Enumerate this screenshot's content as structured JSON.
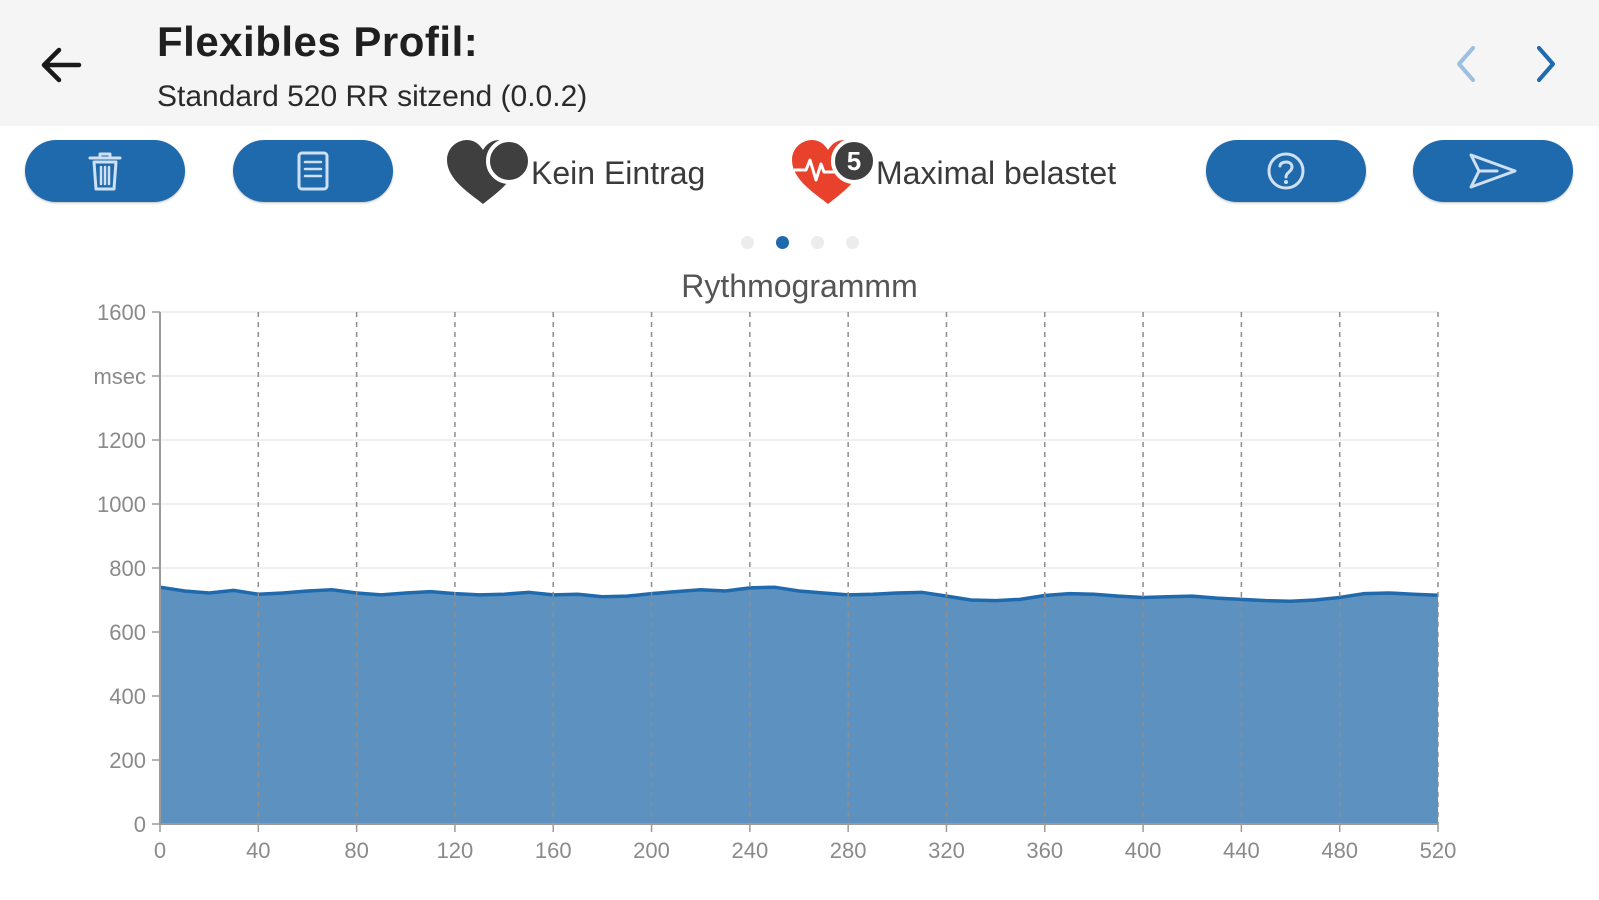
{
  "header": {
    "title": "Flexibles Profil:",
    "subtitle": "Standard 520 RR sitzend (0.0.2)",
    "back_icon": "arrow-left-icon",
    "prev_icon": "chevron-left-icon",
    "next_icon": "chevron-right-icon"
  },
  "toolbar": {
    "delete_icon": "trash-icon",
    "report_icon": "document-icon",
    "help_icon": "question-circle-icon",
    "send_icon": "send-icon",
    "status_none": {
      "label": "Kein Eintrag",
      "icon": "heart-gray-icon"
    },
    "status_load": {
      "label": "Maximal belastet",
      "icon": "heart-red-pulse-icon",
      "badge": "5"
    }
  },
  "pager": {
    "count": 4,
    "active_index": 1
  },
  "colors": {
    "primary": "#1f69ad",
    "area_fill": "#5d92c0",
    "line": "#1f69ad",
    "heart_red": "#e8412c",
    "heart_gray": "#3f3f3f",
    "header_bg": "#f5f5f5"
  },
  "chart_data": {
    "type": "area",
    "title": "Rythmogrammm",
    "ylabel": "msec",
    "xlim": [
      0,
      520
    ],
    "ylim": [
      0,
      1600
    ],
    "x_ticks": [
      0,
      40,
      80,
      120,
      160,
      200,
      240,
      280,
      320,
      360,
      400,
      440,
      480,
      520
    ],
    "y_ticks": [
      "0",
      "200",
      "400",
      "600",
      "800",
      "1000",
      "1200",
      "msec",
      "1600"
    ],
    "grid": {
      "x": "dashed",
      "y": "solid-light"
    },
    "series": [
      {
        "x": [
          0,
          10,
          20,
          30,
          40,
          50,
          60,
          70,
          80,
          90,
          100,
          110,
          120,
          130,
          140,
          150,
          160,
          170,
          180,
          190,
          200,
          210,
          220,
          230,
          240,
          250,
          260,
          270,
          280,
          290,
          300,
          310,
          320,
          330,
          340,
          350,
          360,
          370,
          380,
          390,
          400,
          410,
          420,
          430,
          440,
          450,
          460,
          470,
          480,
          490,
          500,
          510,
          520
        ],
        "values": [
          740,
          728,
          722,
          730,
          718,
          722,
          728,
          732,
          722,
          716,
          722,
          726,
          720,
          716,
          718,
          724,
          716,
          718,
          710,
          712,
          720,
          726,
          732,
          728,
          738,
          740,
          728,
          722,
          716,
          718,
          722,
          724,
          712,
          700,
          698,
          702,
          714,
          720,
          718,
          712,
          708,
          710,
          712,
          706,
          702,
          698,
          696,
          700,
          708,
          720,
          722,
          718,
          715
        ]
      }
    ]
  }
}
